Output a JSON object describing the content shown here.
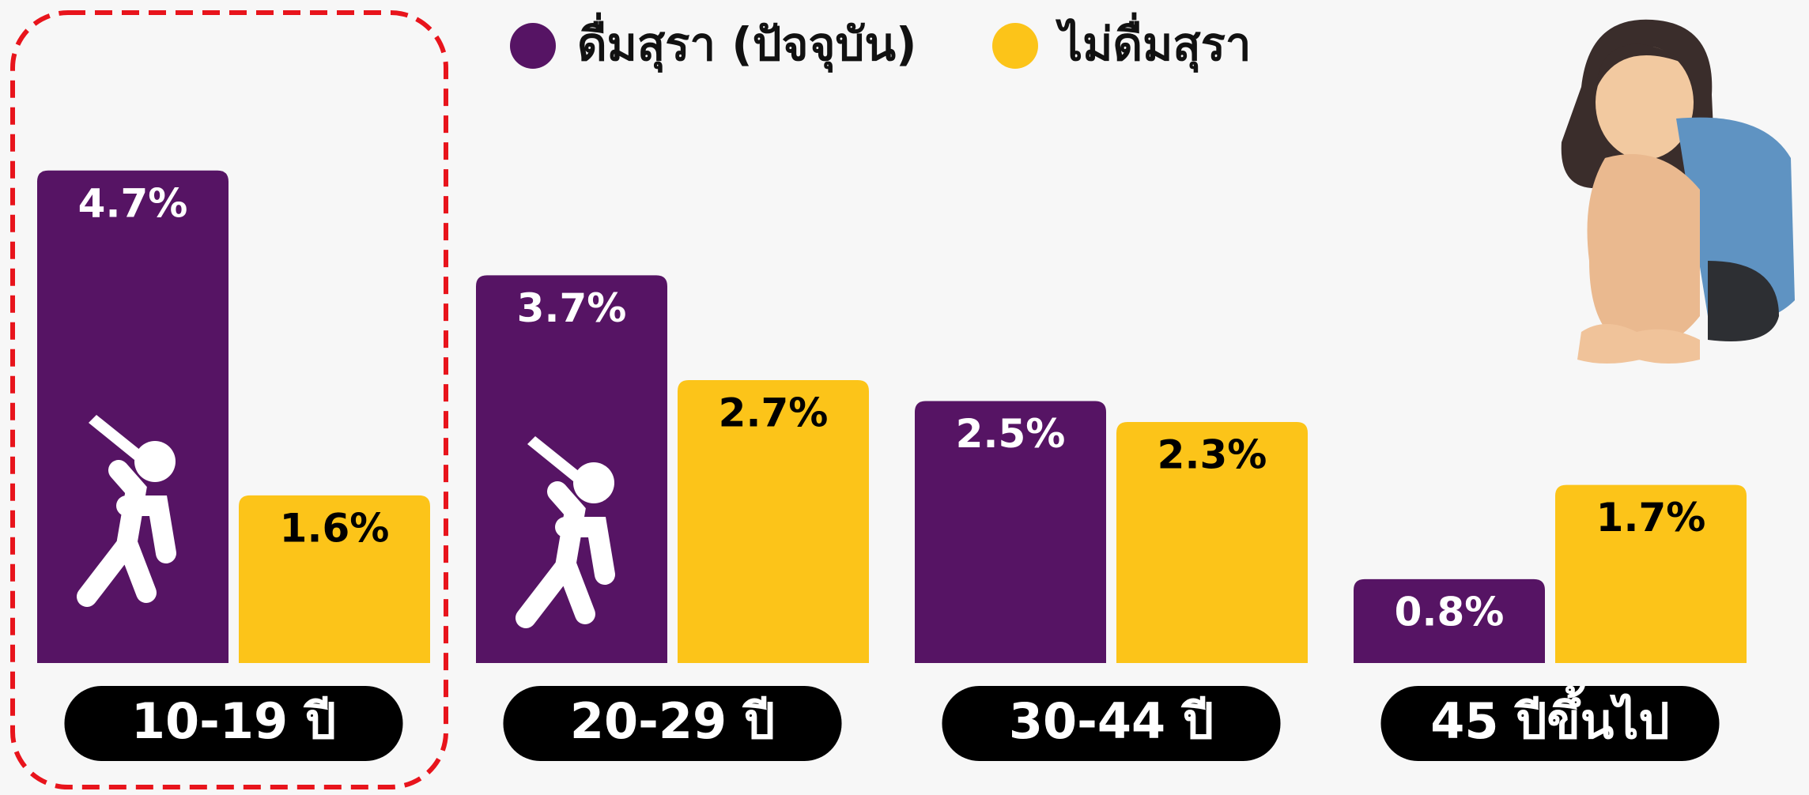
{
  "chart_data": {
    "type": "bar",
    "categories": [
      "10-19 ปี",
      "20-29 ปี",
      "30-44 ปี",
      "45 ปีขึ้นไป"
    ],
    "series": [
      {
        "name": "ดื่มสุรา (ปัจจุบัน)",
        "color": "#561464",
        "values": [
          4.7,
          3.7,
          2.5,
          0.8
        ],
        "value_labels": [
          "4.7%",
          "3.7%",
          "2.5%",
          "0.8%"
        ]
      },
      {
        "name": "ไม่ดื่มสุรา",
        "color": "#fcc419",
        "values": [
          1.6,
          2.7,
          2.3,
          1.7
        ],
        "value_labels": [
          "1.6%",
          "2.7%",
          "2.3%",
          "1.7%"
        ]
      }
    ]
  }
}
